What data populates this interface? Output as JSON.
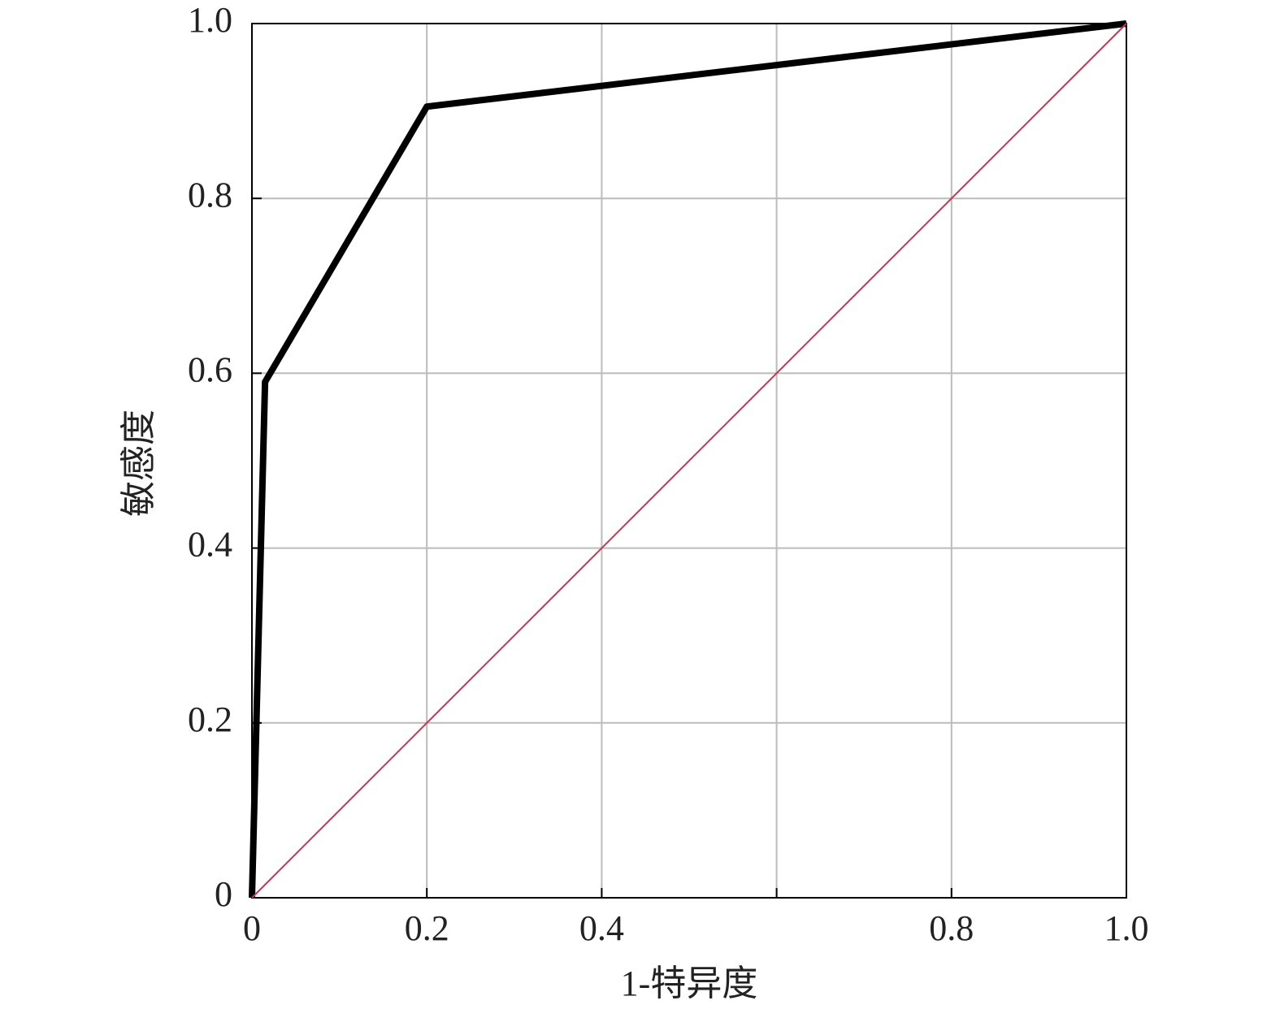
{
  "chart_data": {
    "type": "line",
    "x_label": "1-特异度",
    "y_label": "敏感度",
    "xlim": [
      0,
      1
    ],
    "ylim": [
      0,
      1
    ],
    "xticks": [
      0,
      0.2,
      0.4,
      {
        "value": 0.6,
        "label": null
      },
      0.8,
      {
        "value": 1,
        "label": "1.0"
      }
    ],
    "yticks": [
      0,
      0.2,
      0.4,
      0.6,
      0.8,
      {
        "value": 1,
        "label": "1.0"
      }
    ],
    "grid": true,
    "series": [
      {
        "color": "#000000",
        "x": [
          0,
          0.015,
          0.2,
          1
        ],
        "values": [
          0,
          0.59,
          0.905,
          1
        ]
      },
      {
        "color": "#d0305a",
        "x": [
          0,
          1
        ],
        "values": [
          0,
          1
        ]
      }
    ]
  }
}
